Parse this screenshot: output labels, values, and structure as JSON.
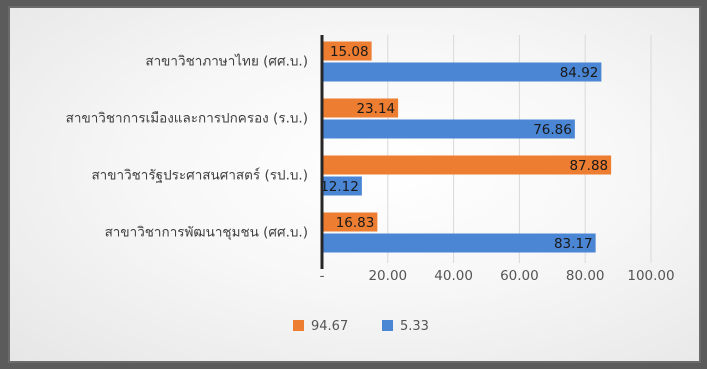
{
  "chart_data": {
    "type": "bar",
    "orientation": "horizontal",
    "stacked": false,
    "categories": [
      "สาขาวิชาภาษาไทย (ศศ.บ.)",
      "สาขาวิชาการเมืองและการปกครอง (ร.บ.)",
      "สาขาวิชารัฐประศาสนศาสตร์ (รป.บ.)",
      "สาขาวิชาการพัฒนาชุมชน (ศศ.บ.)"
    ],
    "series": [
      {
        "name": "94.67",
        "color": "#ED7D31",
        "values": [
          15.08,
          23.14,
          87.88,
          16.83
        ],
        "labels": [
          "15.08",
          "23.14",
          "87.88",
          "16.83"
        ]
      },
      {
        "name": "5.33",
        "color": "#4A86D4",
        "values": [
          84.92,
          76.86,
          12.12,
          83.17
        ],
        "labels": [
          "84.92",
          "76.86",
          "12.12",
          "83.17"
        ]
      }
    ],
    "xlim": [
      0,
      100
    ],
    "xticks": [
      0,
      20,
      40,
      60,
      80,
      100
    ],
    "xtick_labels": [
      "-",
      "20.00",
      "40.00",
      "60.00",
      "80.00",
      "100.00"
    ],
    "grid": true,
    "legend_position": "bottom"
  }
}
